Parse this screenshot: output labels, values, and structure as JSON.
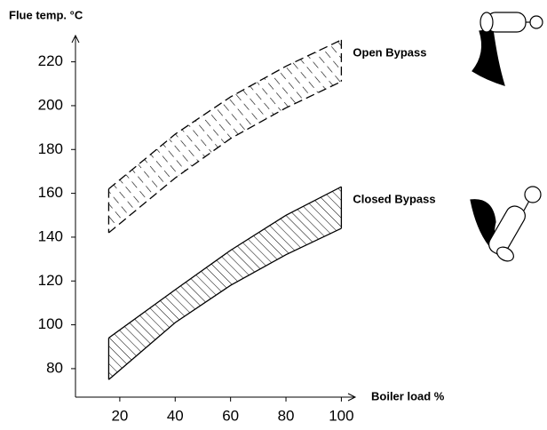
{
  "chart_data": {
    "type": "area-range",
    "y_label": "Flue temp. °C",
    "x_label": "Boiler load %",
    "x": [
      16,
      40,
      60,
      80,
      100
    ],
    "xlim": [
      4,
      105
    ],
    "ylim": [
      67,
      232
    ],
    "xticks": [
      20,
      40,
      60,
      80,
      100
    ],
    "yticks": [
      80,
      100,
      120,
      140,
      160,
      180,
      200,
      220
    ],
    "grid": false,
    "series": [
      {
        "name": "Open Bypass",
        "color": "#000000",
        "line_style": "dashed",
        "high": [
          162,
          187,
          204,
          218,
          230
        ],
        "low": [
          142,
          167,
          185,
          199,
          211
        ]
      },
      {
        "name": "Closed Bypass",
        "color": "#000000",
        "line_style": "solid",
        "high": [
          94,
          116,
          134,
          150,
          163
        ],
        "low": [
          75,
          101,
          118,
          132,
          144
        ]
      }
    ]
  }
}
